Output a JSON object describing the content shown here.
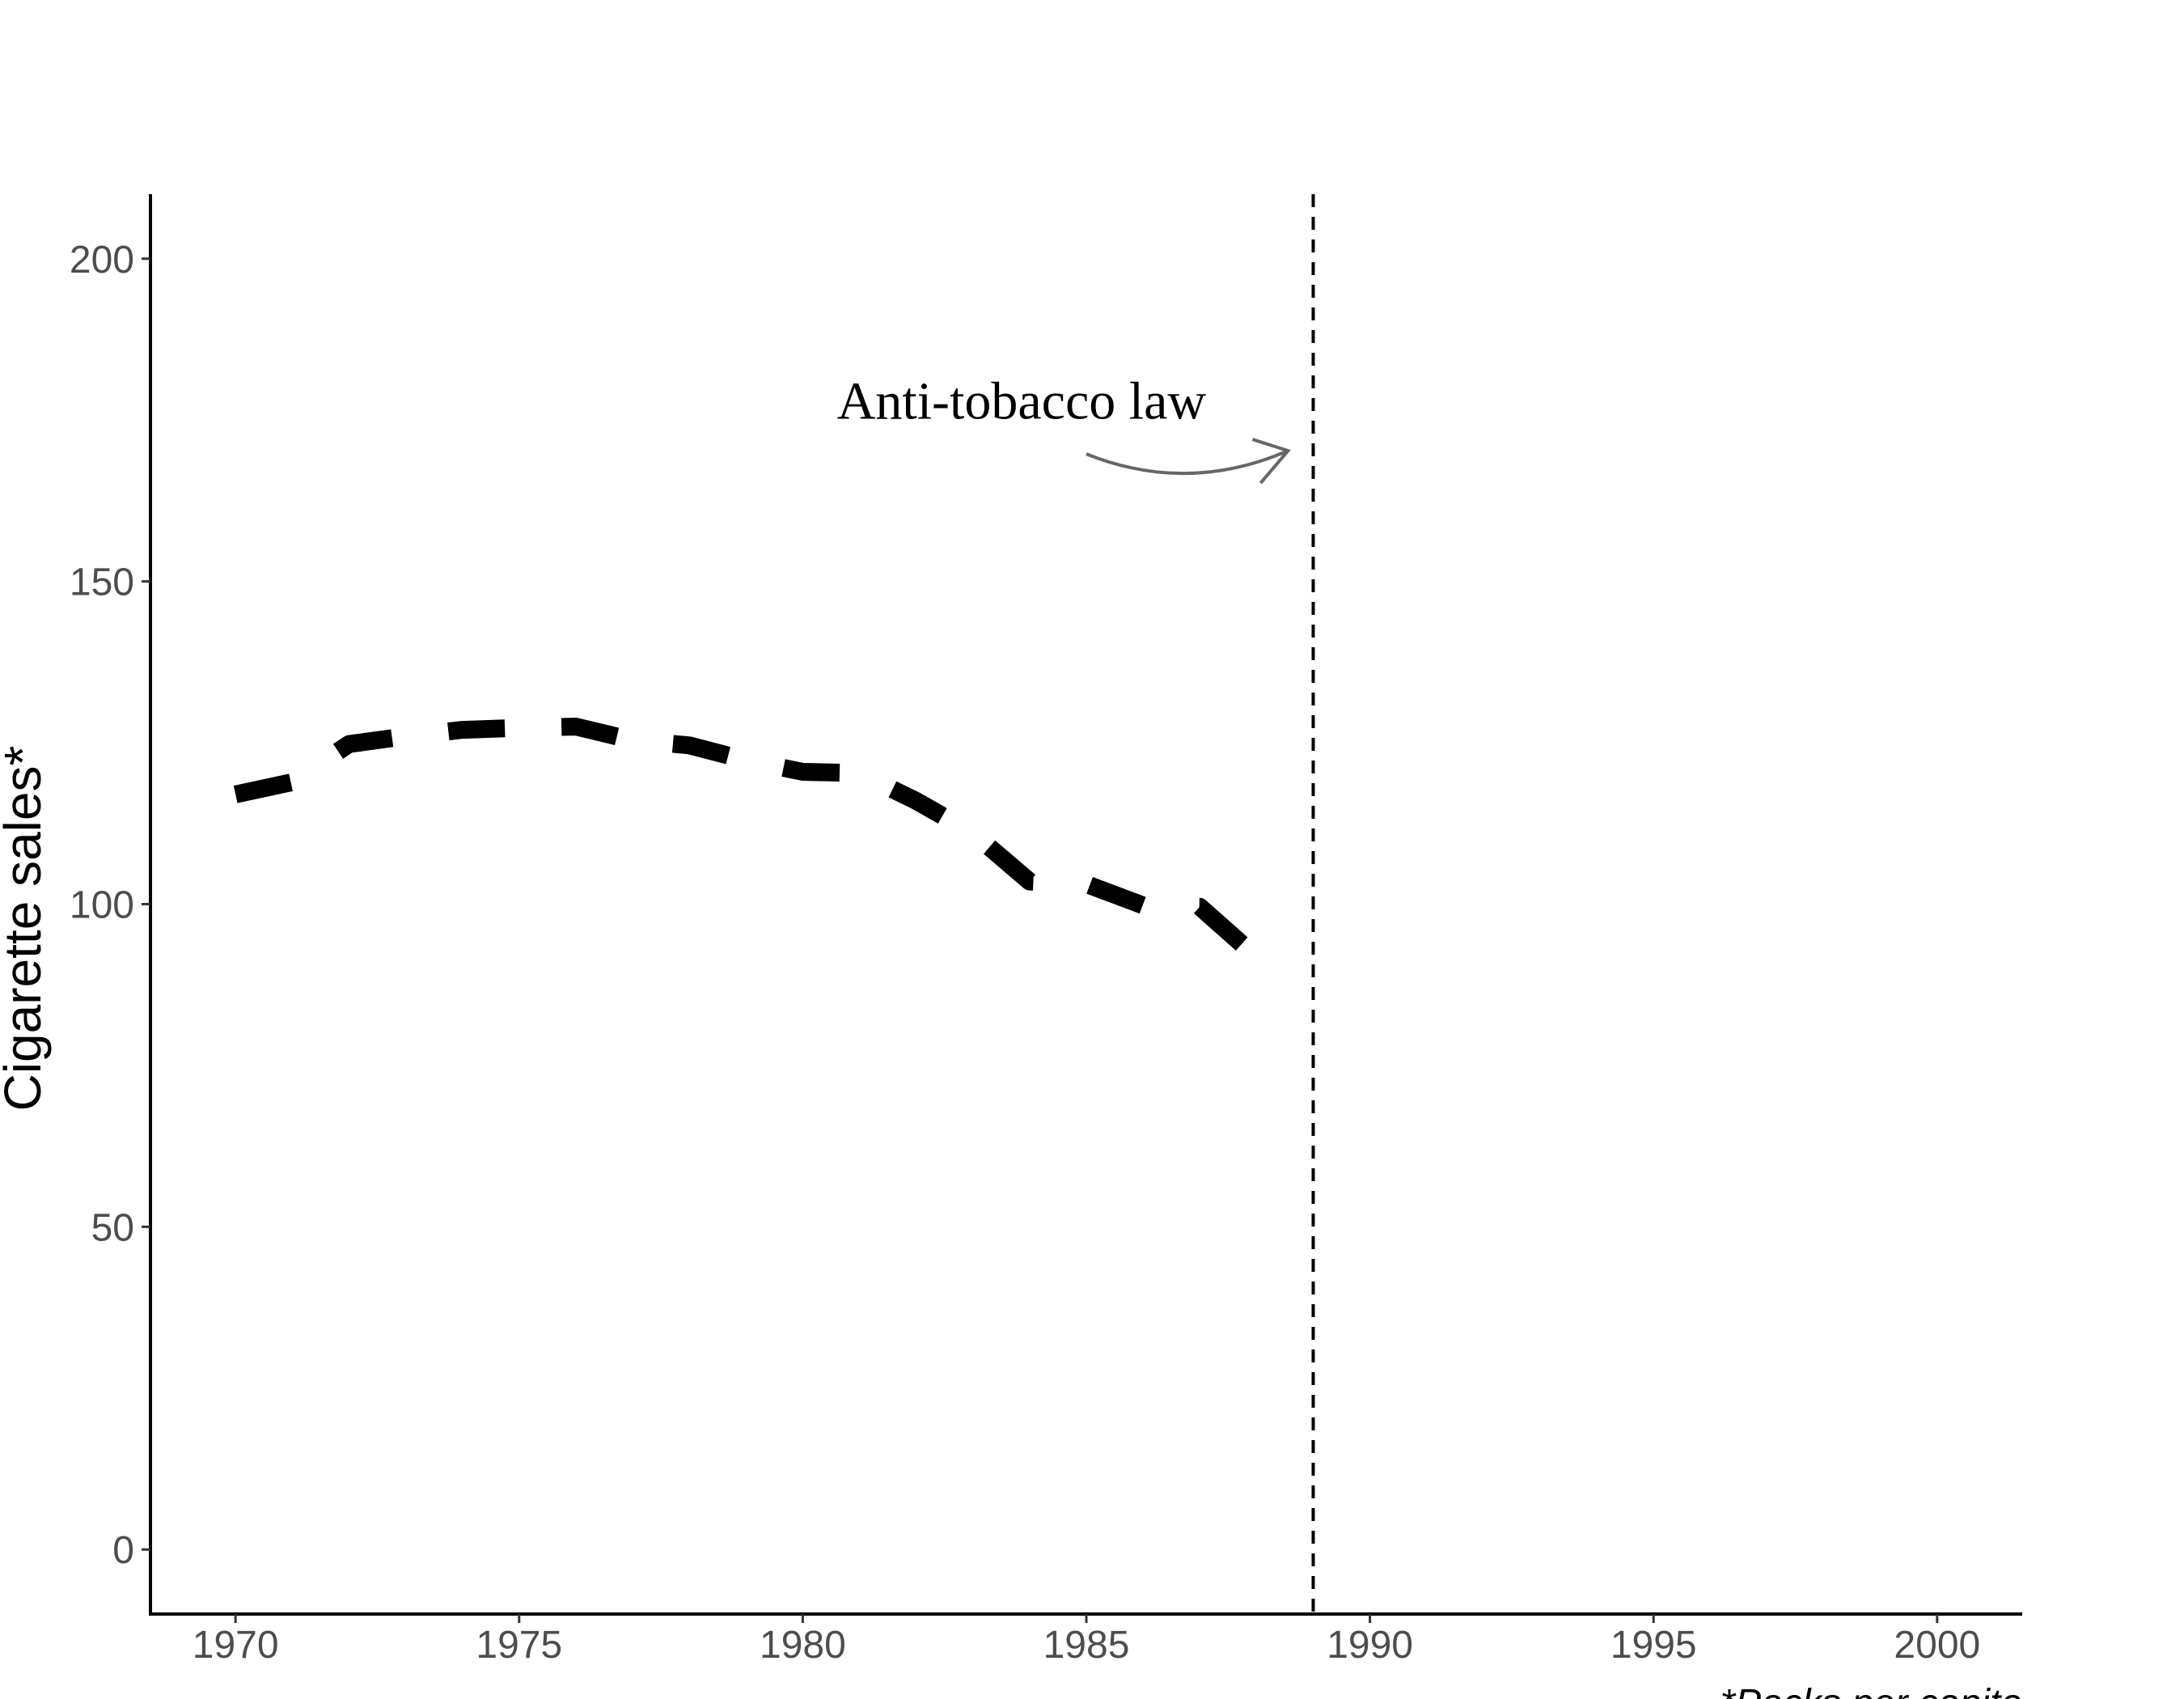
{
  "chart_data": {
    "type": "line",
    "x": [
      1970,
      1971,
      1972,
      1973,
      1974,
      1975,
      1976,
      1977,
      1978,
      1979,
      1980,
      1981,
      1982,
      1983,
      1984,
      1985,
      1986,
      1987,
      1988
    ],
    "series": [
      {
        "values": [
          117.0,
          118.9,
          124.8,
          126.0,
          127.0,
          127.3,
          127.5,
          125.4,
          124.6,
          122.3,
          120.5,
          120.3,
          116.0,
          111.0,
          103.5,
          103.1,
          99.8,
          99.6,
          91.8
        ],
        "line_style": "dashed",
        "color": "#000000"
      }
    ],
    "xlim": [
      1968.5,
      2001.5
    ],
    "ylim": [
      -10,
      210
    ],
    "x_ticks": [
      "1970",
      "1975",
      "1980",
      "1985",
      "1990",
      "1995",
      "2000"
    ],
    "y_ticks": [
      "0",
      "50",
      "100",
      "150",
      "200"
    ],
    "ylabel": "Cigarette sales*",
    "xlabel": "",
    "caption": "*Packs per capita",
    "reference_line": {
      "x": 1989,
      "orientation": "vertical",
      "line_style": "dashed"
    },
    "annotation": {
      "text": "Anti-tobacco law",
      "x": 1984,
      "y": 178,
      "arrow_from": [
        1985,
        170
      ],
      "arrow_to": [
        1988.5,
        170
      ],
      "arrow_color": "#666666"
    },
    "grid": false,
    "legend": "none"
  }
}
